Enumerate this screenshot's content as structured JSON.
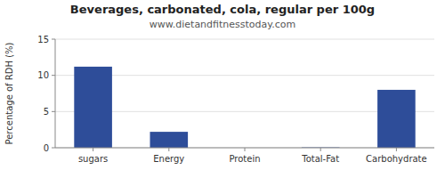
{
  "chart_data": {
    "type": "bar",
    "title": "Beverages, carbonated, cola, regular per 100g",
    "subtitle": "www.dietandfitnesstoday.com",
    "categories": [
      "sugars",
      "Energy",
      "Protein",
      "Total-Fat",
      "Carbohydrate"
    ],
    "values": [
      11.2,
      2.2,
      0.0,
      0.05,
      8.0
    ],
    "color": "#2e4d99",
    "ylabel": "Percentage of RDH (%)",
    "ylim": [
      0,
      15
    ],
    "yticks": [
      0,
      5,
      10,
      15
    ],
    "grid": true
  }
}
